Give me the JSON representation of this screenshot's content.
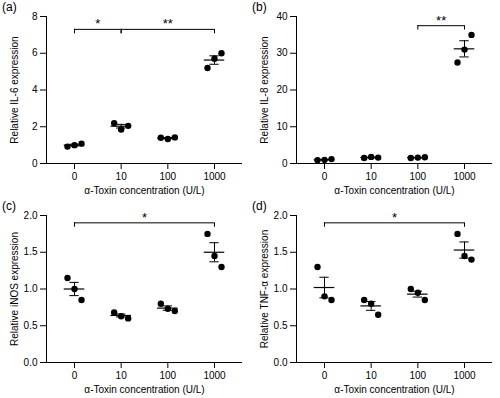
{
  "chart_data": [
    {
      "type": "scatter",
      "title": "(a)",
      "x_label": "α-Toxin concentration (U/L)",
      "y_label": "Relative IL-6 expression",
      "categories": [
        "0",
        "10",
        "100",
        "1000"
      ],
      "values": [
        [
          0.92,
          1.0,
          1.08
        ],
        [
          2.2,
          1.85,
          2.05
        ],
        [
          1.4,
          1.33,
          1.42
        ],
        [
          5.2,
          5.7,
          6.0
        ]
      ],
      "means": [
        1.0,
        2.03,
        1.38,
        5.63
      ],
      "errors": [
        0.05,
        0.1,
        0.03,
        0.23
      ],
      "color": "#000000",
      "ylim": [
        0,
        8
      ],
      "yticks": [
        0,
        2,
        4,
        6,
        8
      ],
      "annotations": [
        {
          "text": "*",
          "from": "0",
          "to": "10",
          "y": 7.3
        },
        {
          "text": "**",
          "from": "10",
          "to": "1000",
          "y": 7.3
        }
      ]
    },
    {
      "type": "scatter",
      "title": "(b)",
      "x_label": "α-Toxin concentration (U/L)",
      "y_label": "Relative IL-8 expression",
      "categories": [
        "0",
        "10",
        "100",
        "1000"
      ],
      "values": [
        [
          0.9,
          1.0,
          1.2
        ],
        [
          1.5,
          1.8,
          1.6
        ],
        [
          1.5,
          1.6,
          1.7
        ],
        [
          27.5,
          31,
          35
        ]
      ],
      "means": [
        1.03,
        1.63,
        1.6,
        31.2
      ],
      "errors": [
        0.09,
        0.09,
        0.06,
        2.2
      ],
      "color": "#000000",
      "ylim": [
        0,
        40
      ],
      "yticks": [
        0,
        10,
        20,
        30,
        40
      ],
      "annotations": [
        {
          "text": "**",
          "from": "100",
          "to": "1000",
          "y": 37.5
        }
      ]
    },
    {
      "type": "scatter",
      "title": "(c)",
      "x_label": "α-Toxin concentration (U/L)",
      "y_label": "Relative iNOS expression",
      "categories": [
        "0",
        "10",
        "100",
        "1000"
      ],
      "values": [
        [
          1.15,
          1.0,
          0.85
        ],
        [
          0.68,
          0.63,
          0.6
        ],
        [
          0.8,
          0.73,
          0.7
        ],
        [
          1.75,
          1.45,
          1.3
        ]
      ],
      "means": [
        1.0,
        0.64,
        0.74,
        1.5
      ],
      "errors": [
        0.09,
        0.02,
        0.03,
        0.13
      ],
      "color": "#000000",
      "ylim": [
        0,
        2
      ],
      "yticks": [
        {
          "value": 0,
          "label": "0.0"
        },
        {
          "value": 0.5,
          "label": "0.5"
        },
        {
          "value": 1,
          "label": "1.0"
        },
        {
          "value": 1.5,
          "label": "1.5"
        },
        {
          "value": 2,
          "label": "2.0"
        }
      ],
      "annotations": [
        {
          "text": "*",
          "from": "0",
          "to": "1000",
          "y": 1.9
        }
      ]
    },
    {
      "type": "scatter",
      "title": "(d)",
      "x_label": "α-Toxin concentration (U/L)",
      "y_label": "Relative TNF-α expression",
      "categories": [
        "0",
        "10",
        "100",
        "1000"
      ],
      "values": [
        [
          1.3,
          0.9,
          0.85
        ],
        [
          0.85,
          0.8,
          0.65
        ],
        [
          1.0,
          0.95,
          0.85
        ],
        [
          1.75,
          1.45,
          1.4
        ]
      ],
      "means": [
        1.02,
        0.77,
        0.93,
        1.53
      ],
      "errors": [
        0.14,
        0.06,
        0.04,
        0.11
      ],
      "color": "#000000",
      "ylim": [
        0,
        2
      ],
      "yticks": [
        {
          "value": 0,
          "label": "0.0"
        },
        {
          "value": 0.5,
          "label": "0.5"
        },
        {
          "value": 1,
          "label": "1.0"
        },
        {
          "value": 1.5,
          "label": "1.5"
        },
        {
          "value": 2,
          "label": "2.0"
        }
      ],
      "annotations": [
        {
          "text": "*",
          "from": "0",
          "to": "1000",
          "y": 1.9
        }
      ]
    }
  ]
}
